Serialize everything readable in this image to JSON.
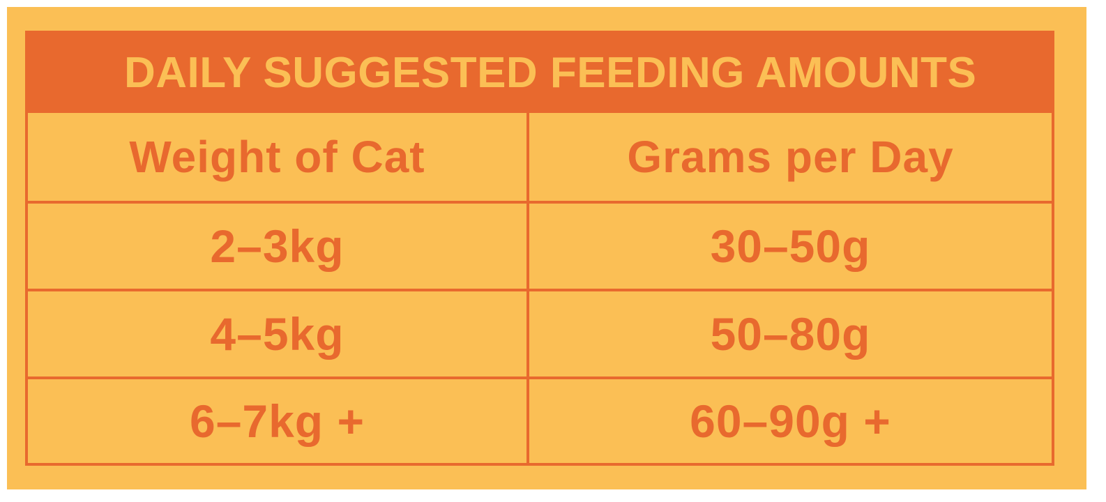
{
  "title": "DAILY SUGGESTED FEEDING AMOUNTS",
  "columns": [
    "Weight of Cat",
    "Grams per Day"
  ],
  "rows": [
    [
      "2–3kg",
      "30–50g"
    ],
    [
      "4–5kg",
      "50–80g"
    ],
    [
      "6–7kg +",
      "60–90g +"
    ]
  ],
  "colors": {
    "background": "#FBBF55",
    "accent": "#E8692E"
  }
}
